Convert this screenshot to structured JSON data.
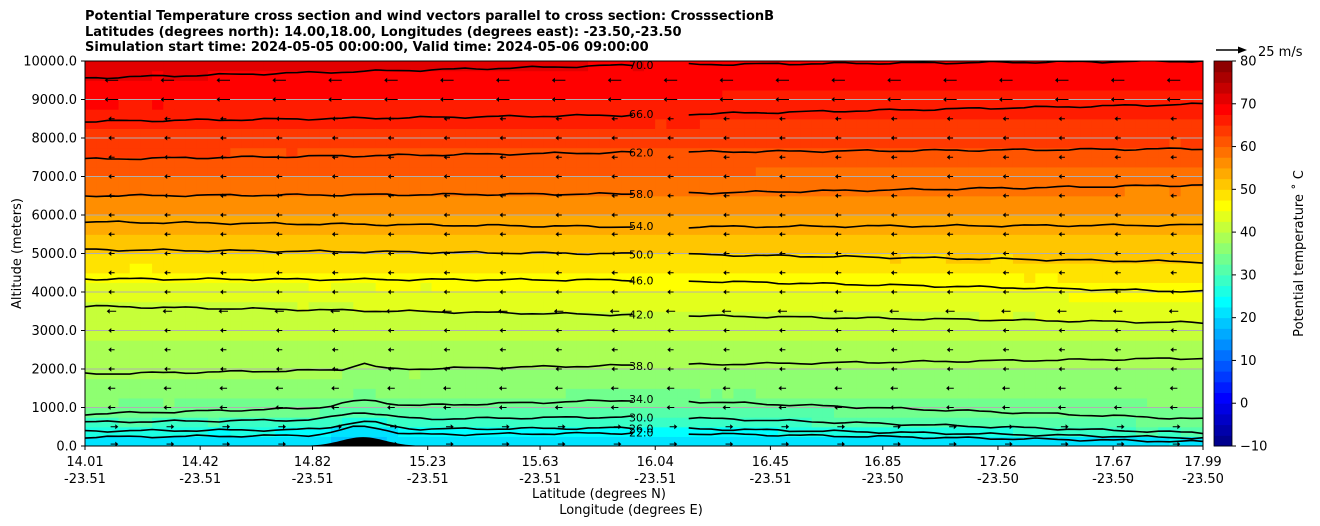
{
  "title_lines": [
    "Potential Temperature cross section and wind vectors parallel to cross section: CrosssectionB",
    "Latitudes (degrees north): 14.00,18.00, Longitudes (degrees east): -23.50,-23.50",
    "Simulation start time: 2024-05-05 00:00:00, Valid time: 2024-05-06 09:00:00"
  ],
  "chart_data": {
    "type": "contour",
    "title": "Potential Temperature cross section and wind vectors parallel to cross section: CrosssectionB",
    "xlabel": "Latitude (degrees N)",
    "xlabel2": "Longitude (degrees E)",
    "ylabel": "Altitude (meters)",
    "xlim": [
      14.01,
      17.99
    ],
    "ylim": [
      0,
      10000
    ],
    "grid": "horizontal",
    "x_ticks": [
      {
        "lat": "14.01",
        "lon": "-23.51"
      },
      {
        "lat": "14.42",
        "lon": "-23.51"
      },
      {
        "lat": "14.82",
        "lon": "-23.51"
      },
      {
        "lat": "15.23",
        "lon": "-23.51"
      },
      {
        "lat": "15.63",
        "lon": "-23.51"
      },
      {
        "lat": "16.04",
        "lon": "-23.51"
      },
      {
        "lat": "16.45",
        "lon": "-23.51"
      },
      {
        "lat": "16.85",
        "lon": "-23.50"
      },
      {
        "lat": "17.26",
        "lon": "-23.50"
      },
      {
        "lat": "17.67",
        "lon": "-23.50"
      },
      {
        "lat": "17.99",
        "lon": "-23.50"
      }
    ],
    "y_ticks": [
      "0.0",
      "1000.0",
      "2000.0",
      "3000.0",
      "4000.0",
      "5000.0",
      "6000.0",
      "7000.0",
      "8000.0",
      "9000.0",
      "10000.0"
    ],
    "colorbar": {
      "label": "Potential temperature ˚ C",
      "min": -10,
      "max": 80,
      "ticks": [
        "−10",
        "0",
        "10",
        "20",
        "30",
        "40",
        "50",
        "60",
        "70",
        "80"
      ]
    },
    "quiver_key": "25 m/s",
    "contours": [
      {
        "level": 22.0,
        "label": "22.0",
        "start": 230,
        "end": 340,
        "slope": 110
      },
      {
        "level": 26.0,
        "label": "26.0",
        "start": 390,
        "end": 470,
        "slope": 210
      },
      {
        "level": 30.0,
        "label": "30.0",
        "start": 620,
        "end": 760,
        "slope": 340
      },
      {
        "level": 34.0,
        "label": "34.0",
        "start": 830,
        "end": 1200,
        "slope": 700
      },
      {
        "level": 38.0,
        "label": "38.0",
        "start": 1870,
        "end": 2100,
        "slope": 2280
      },
      {
        "level": 42.0,
        "label": "42.0",
        "start": 3630,
        "end": 3400,
        "slope": 3200
      },
      {
        "level": 46.0,
        "label": "46.0",
        "start": 4340,
        "end": 4310,
        "slope": 4010
      },
      {
        "level": 50.0,
        "label": "50.0",
        "start": 5100,
        "end": 4990,
        "slope": 4780
      },
      {
        "level": 54.0,
        "label": "54.0",
        "start": 5820,
        "end": 5690,
        "slope": 5740
      },
      {
        "level": 58.0,
        "label": "58.0",
        "start": 6500,
        "end": 6550,
        "slope": 6780
      },
      {
        "level": 62.0,
        "label": "62.0",
        "start": 7450,
        "end": 7630,
        "slope": 7720
      },
      {
        "level": 66.0,
        "label": "66.0",
        "start": 8430,
        "end": 8600,
        "slope": 8880
      },
      {
        "level": 70.0,
        "label": "70.0",
        "start": 9560,
        "end": 9900,
        "slope": 10000
      }
    ],
    "terrain": {
      "center_lat": 15.0,
      "peak_m": 230,
      "halfwidth_deg": 0.11
    },
    "wind_vector_rows_m": [
      50,
      500,
      1000,
      1500,
      2000,
      2500,
      3000,
      3500,
      4000,
      4500,
      5000,
      5500,
      6000,
      6500,
      7000,
      7500,
      8000,
      8500,
      9000,
      9500
    ],
    "wind_vector_columns": 20
  }
}
